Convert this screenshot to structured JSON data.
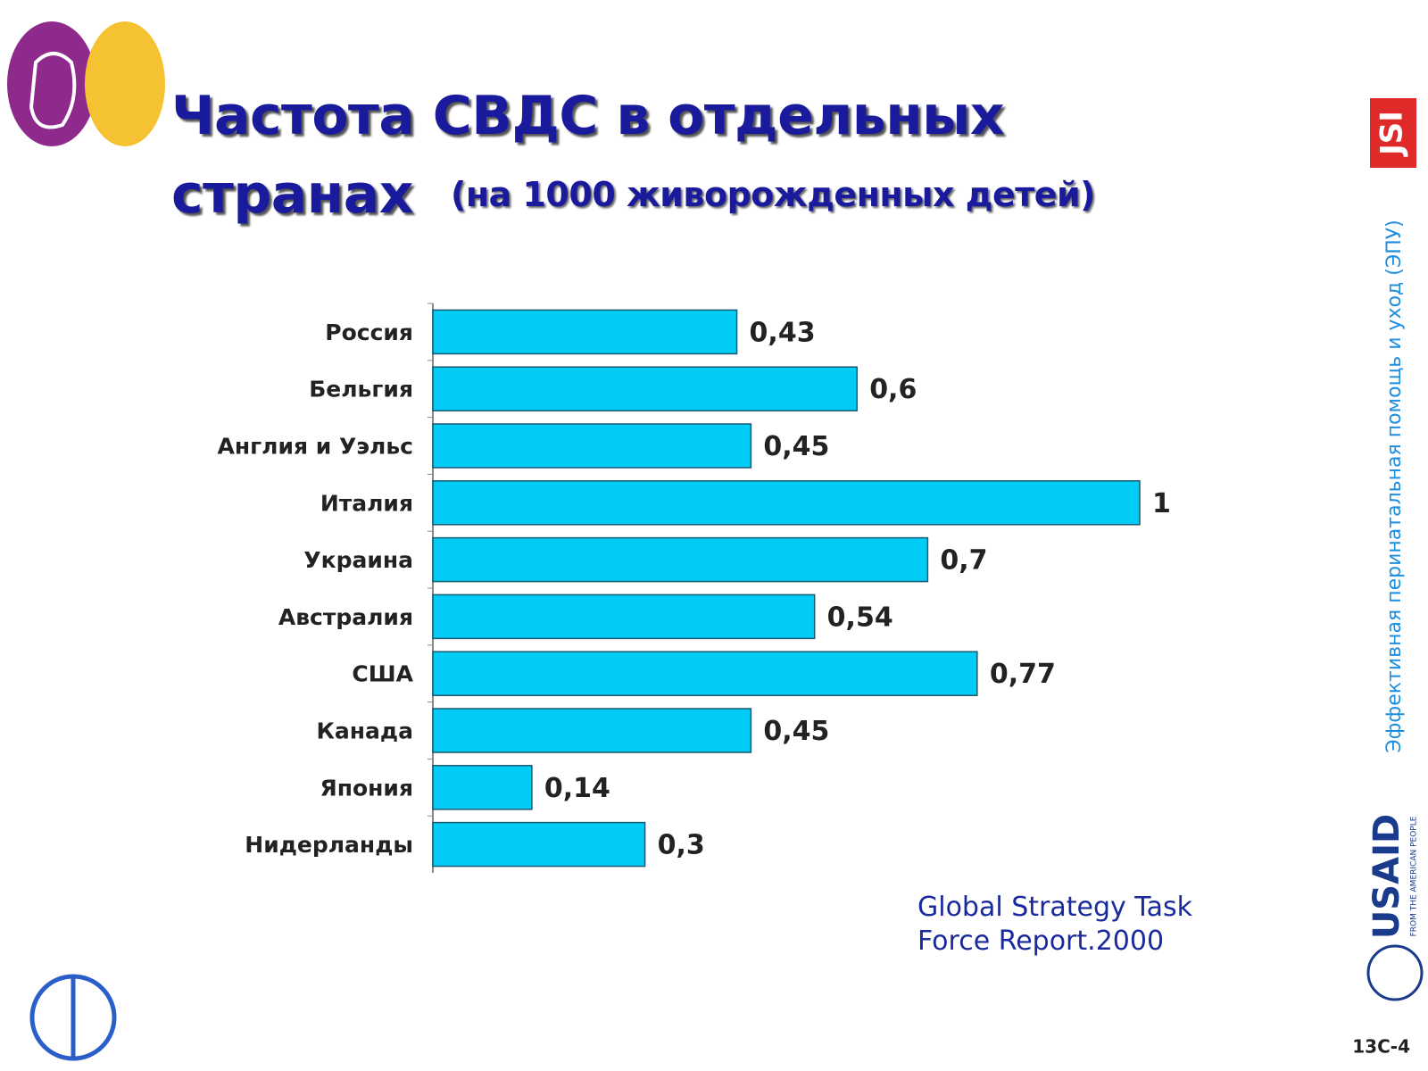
{
  "chart_data": {
    "type": "barh",
    "title": "Частота СВДС в отдельных странах",
    "subtitle": "(на 1000 живорожденных детей)",
    "categories": [
      "Россия",
      "Бельгия",
      "Англия и Уэльс",
      "Италия",
      "Украина",
      "Австралия",
      "США",
      "Канада",
      "Япония",
      "Нидерланды"
    ],
    "values": [
      0.43,
      0.6,
      0.45,
      1,
      0.7,
      0.54,
      0.77,
      0.45,
      0.14,
      0.3
    ],
    "value_labels": [
      "0,43",
      "0,6",
      "0,45",
      "1",
      "0,7",
      "0,54",
      "0,77",
      "0,45",
      "0,14",
      "0,3"
    ],
    "color": "#00ccf5",
    "source": "Global Strategy Task Force Report.2000"
  },
  "side": {
    "program": "Эффективная перинатальная помощь и уход (ЭПУ)",
    "jsi": "JSI",
    "usaid": "USAID",
    "usaid_tagline": "FROM THE AMERICAN PEOPLE",
    "slide_number": "13С-4"
  }
}
